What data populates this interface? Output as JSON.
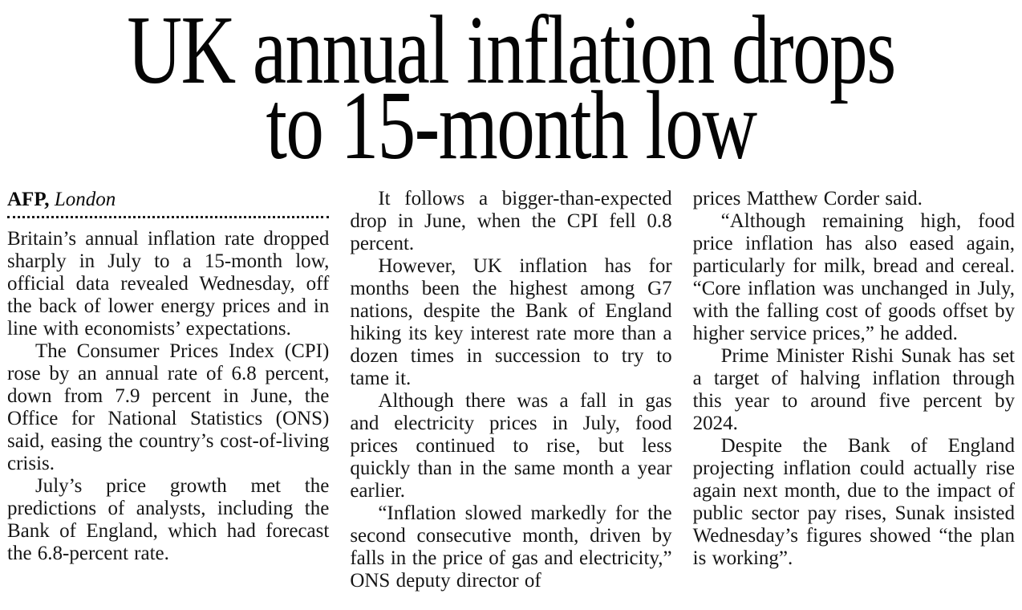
{
  "page": {
    "background_color": "#ffffff",
    "text_color": "#161616",
    "headline_color": "#050505"
  },
  "article": {
    "headline": {
      "lines": [
        "UK annual inflation drops",
        "to 15-month low"
      ],
      "full_text": "UK annual inflation drops to 15-month low"
    },
    "byline": {
      "source": "AFP,",
      "location": "London"
    },
    "columns": [
      {
        "paragraphs": [
          {
            "indent": false,
            "text": "Britain’s annual inflation rate dropped sharply in July to a 15-month low, official data revealed Wednesday, off the back of lower energy prices and in line with economists’ expectations."
          },
          {
            "indent": true,
            "text": "The Consumer Prices Index (CPI) rose by an annual rate of 6.8 percent, down from 7.9 percent in June, the Office for National Statistics (ONS) said, easing the country’s cost-of-living crisis."
          },
          {
            "indent": true,
            "text": "July’s price growth met the predictions of analysts, including the Bank of England, which had forecast the 6.8-percent rate."
          }
        ]
      },
      {
        "paragraphs": [
          {
            "indent": true,
            "text": "It follows a bigger-than-expected drop in June, when the CPI fell 0.8 percent."
          },
          {
            "indent": true,
            "text": "However, UK inflation has for months been the highest among G7 nations, despite the Bank of England hiking its key interest rate more than a dozen times in succession to try to tame it."
          },
          {
            "indent": true,
            "text": "Although there was a fall in gas and electricity prices in July, food prices continued to rise, but less quickly than in the same month a year earlier."
          },
          {
            "indent": true,
            "text": "“Inflation slowed markedly for the second consecutive month, driven by falls in the price of gas and electricity,” ONS deputy director of"
          }
        ]
      },
      {
        "paragraphs": [
          {
            "indent": false,
            "text": "prices Matthew Corder said."
          },
          {
            "indent": true,
            "text": "“Although remaining high, food price inflation has also eased again, particularly for milk, bread and cereal. “Core inflation was unchanged in July, with the falling cost of goods offset by higher service prices,” he added."
          },
          {
            "indent": true,
            "text": "Prime Minister Rishi Sunak has set a target of halving inflation through this year to around five percent by 2024."
          },
          {
            "indent": true,
            "text": "Despite the Bank of England projecting inflation could actually rise again next month, due to the impact of public sector pay rises, Sunak insisted Wednesday’s figures showed “the plan is working”."
          }
        ]
      }
    ]
  }
}
